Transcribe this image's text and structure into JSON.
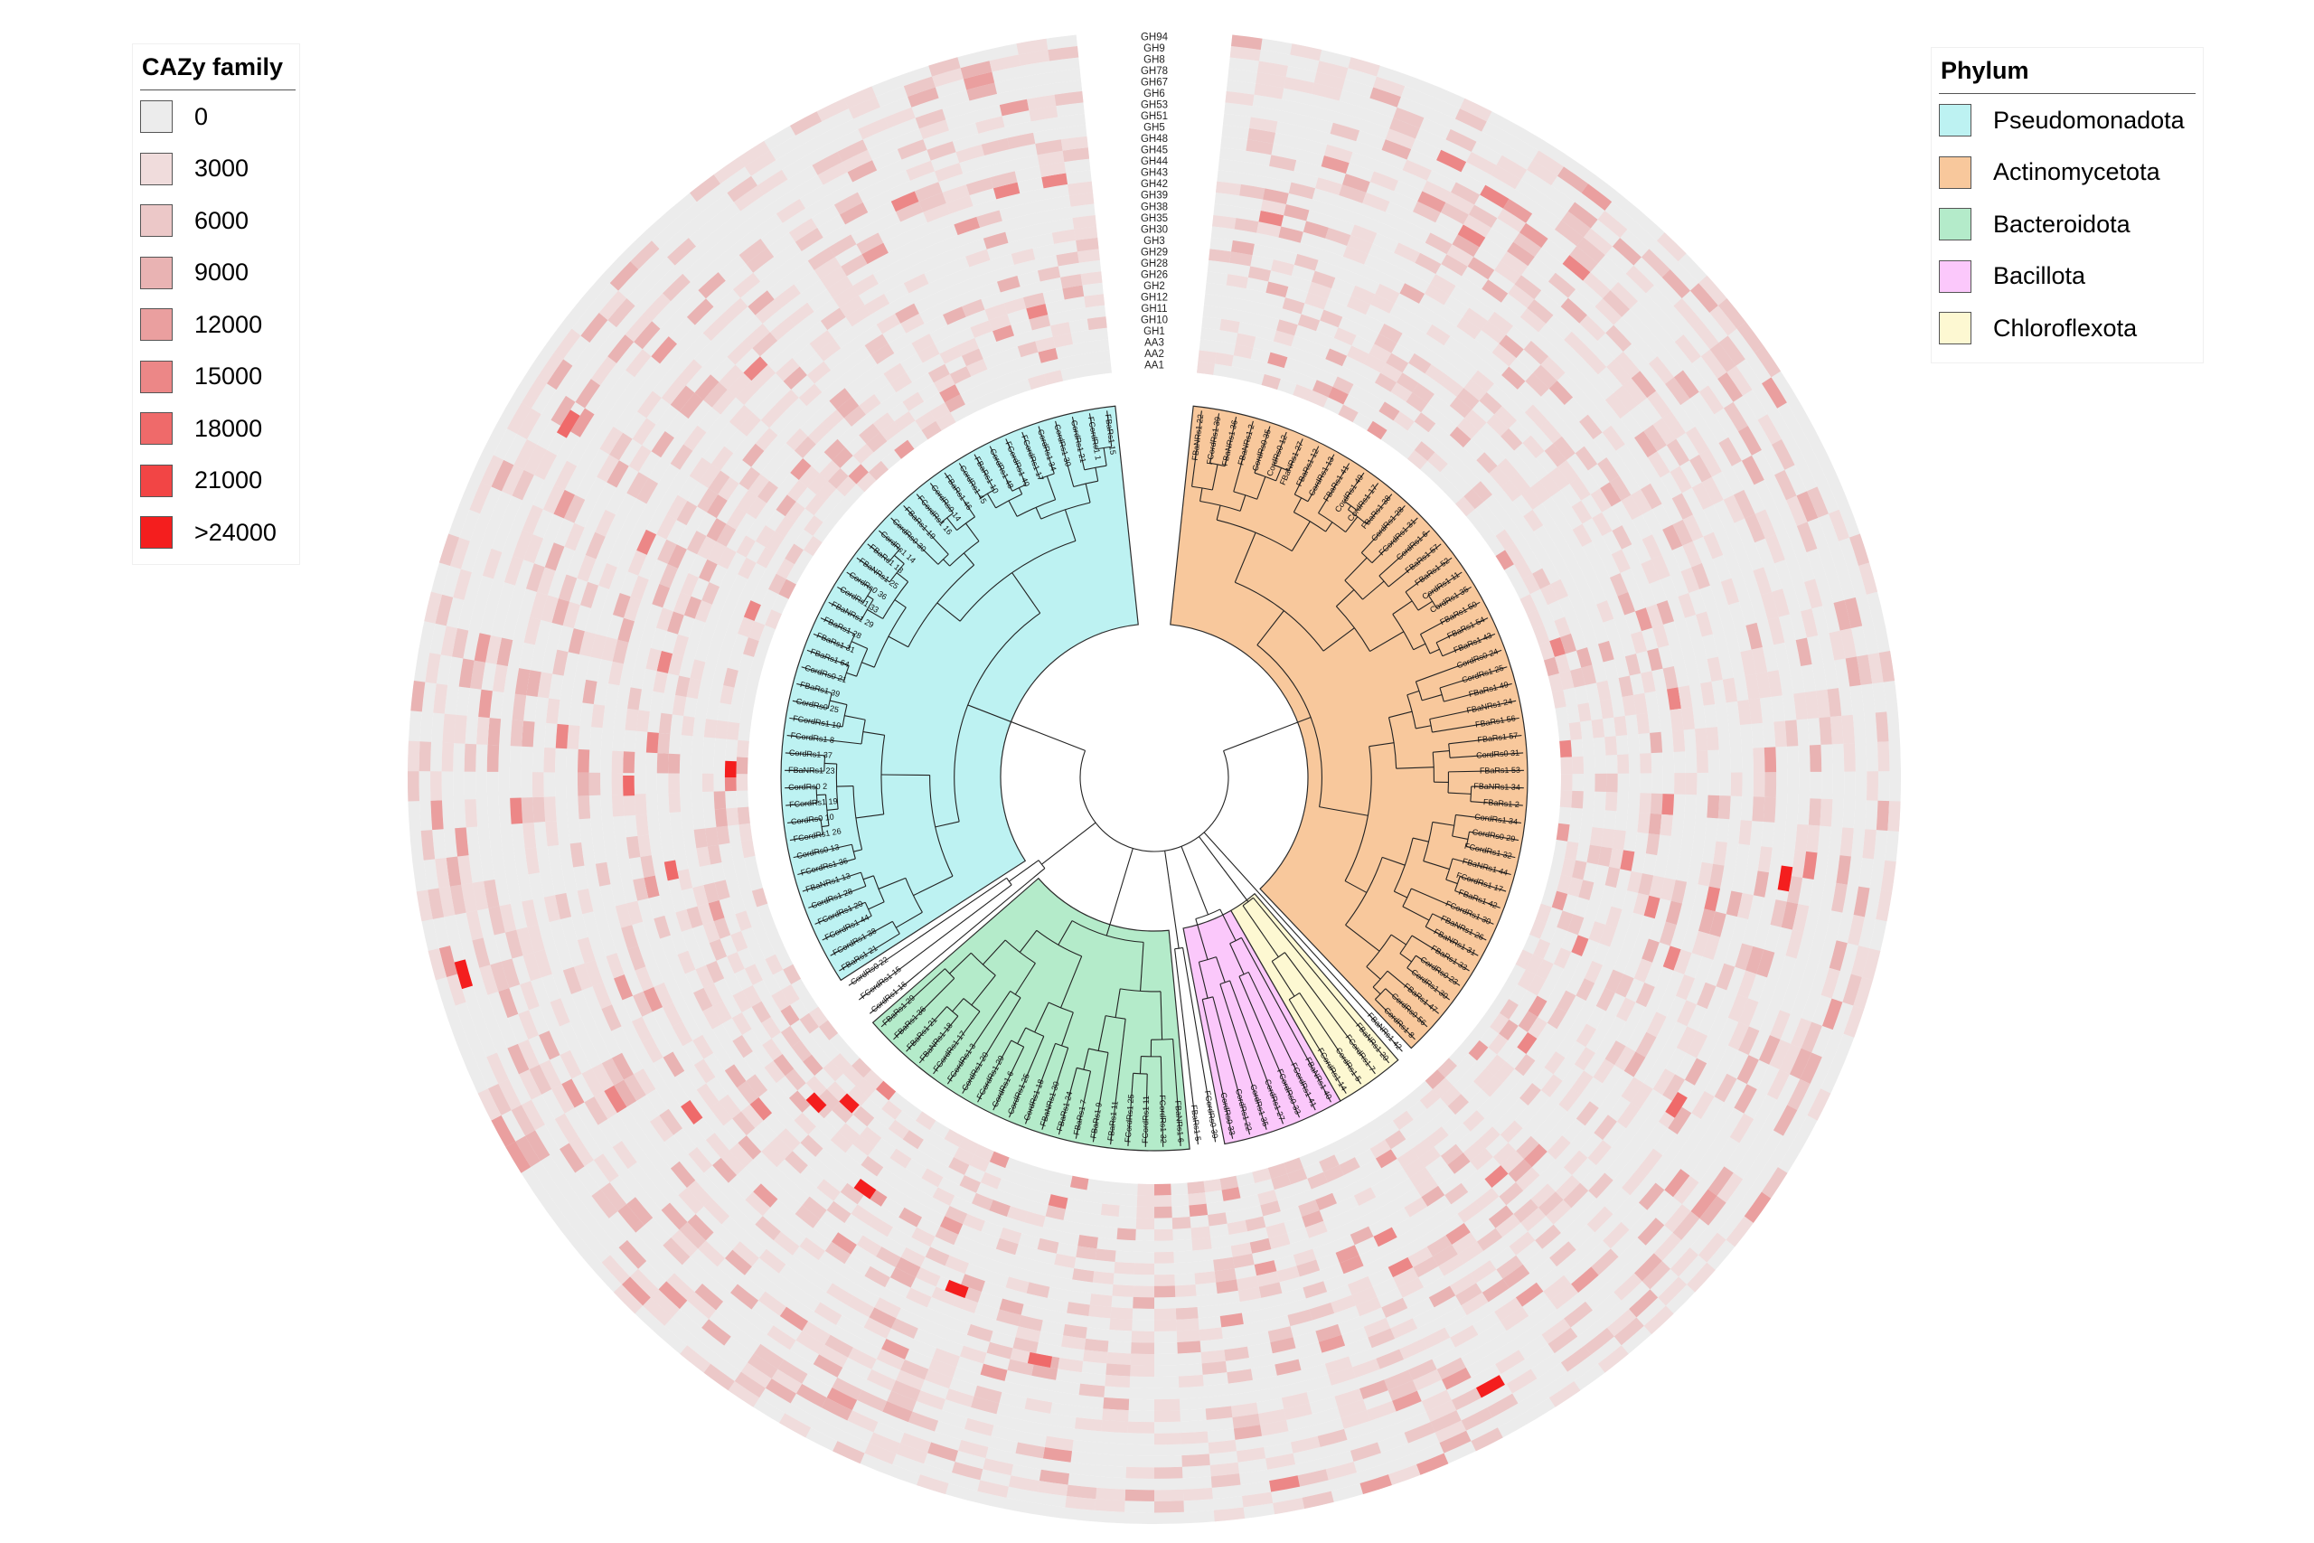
{
  "cazy_legend": {
    "title": "CAZy family",
    "items": [
      {
        "label": "0",
        "color": "#ececec"
      },
      {
        "label": "3000",
        "color": "#f0dcdc"
      },
      {
        "label": "6000",
        "color": "#ecc8c8"
      },
      {
        "label": "9000",
        "color": "#e9b3b3"
      },
      {
        "label": "12000",
        "color": "#ea9f9f"
      },
      {
        "label": "15000",
        "color": "#ec8787"
      },
      {
        "label": "18000",
        "color": "#ef6a6a"
      },
      {
        "label": "21000",
        "color": "#f24545"
      },
      {
        "label": ">24000",
        "color": "#f41e1e"
      }
    ]
  },
  "phylum_legend": {
    "title": "Phylum",
    "items": [
      {
        "label": "Pseudomonadota",
        "color": "#bdf2f2"
      },
      {
        "label": "Actinomycetota",
        "color": "#f8c89c"
      },
      {
        "label": "Bacteroidota",
        "color": "#b4ebca"
      },
      {
        "label": "Bacillota",
        "color": "#fbc8fb"
      },
      {
        "label": "Chloroflexota",
        "color": "#fdf8d2"
      }
    ]
  },
  "ring_families": [
    "GH94",
    "GH9",
    "GH8",
    "GH78",
    "GH67",
    "GH6",
    "GH53",
    "GH51",
    "GH5",
    "GH48",
    "GH45",
    "GH44",
    "GH43",
    "GH42",
    "GH39",
    "GH38",
    "GH35",
    "GH30",
    "GH3",
    "GH29",
    "GH28",
    "GH26",
    "GH2",
    "GH12",
    "GH11",
    "GH10",
    "GH1",
    "AA3",
    "AA2",
    "AA1"
  ],
  "clades": [
    {
      "phylum": "Pseudomonadota",
      "tips": [
        "FBaRs1 15",
        "FCordRs1 1",
        "CordRs1 21",
        "CordRs1 30",
        "CordRs1 34",
        "FCordRs1 17",
        "FCordRs1 40",
        "CordRs1 48",
        "FBaRs1 10",
        "CordRs1 45",
        "FBaRs1 46",
        "CordRs0 14",
        "FCordRs1 16",
        "FBaRs1 19",
        "CordRs0 30",
        "CordRs1 14",
        "FBaRs1 18",
        "FBaNRs1 25",
        "CordRs0 36",
        "CordRs1 33",
        "FBaNRs1 29",
        "FBaRs1 28",
        "FBaRs1 31",
        "FBaRs1 64",
        "CordRs0 21",
        "FBaRs1 39",
        "CordRs0 25",
        "FCordRs1 10",
        "FCordRs1 8",
        "CordRs1 37",
        "FBaNRs1 23",
        "CordRs0 2",
        "FCordRs1 19",
        "CordRs0 10",
        "FCordRs1 26",
        "CordRs0 13",
        "FCordRs1 36",
        "FBaNRs1 13",
        "CordRs1 28",
        "FCordRs1 20",
        "FCordRs1 44",
        "FCordRs1 38",
        "FBaRs1 21"
      ]
    },
    {
      "phylum": "",
      "tips": [
        "CordRs0 22",
        "FCordRs1 15",
        "CordRs1 16"
      ]
    },
    {
      "phylum": "Bacteroidota",
      "tips": [
        "FBaRs1 29",
        "FBaRs1 36",
        "FBaRs1 21",
        "FBaNRs1 18",
        "FCordRs1 17",
        "FCordRs1 3",
        "CordRs1 20",
        "FCordRs1 29",
        "CordRs1 6",
        "CordRs1 25",
        "CordRs1 18",
        "FBaNRs1 30",
        "FBaRs1 24",
        "FBaRs1 7",
        "FBaRs1 9",
        "FBaRs1 11",
        "FCordRs1 25",
        "FCordRs1 11",
        "FCordRs1 32",
        "FBaNRs1 6"
      ]
    },
    {
      "phylum": "",
      "tips": [
        "FBaRs1 5",
        "FCordRs0 39"
      ]
    },
    {
      "phylum": "Bacillota",
      "tips": [
        "CordRs0 33",
        "CordRs1 22",
        "CordRs1 35",
        "CordRs1 27",
        "FCordRs0 33",
        "FCordRs1 41",
        "FBaNRs1 40"
      ]
    },
    {
      "phylum": "Chloroflexota",
      "tips": [
        "FCordRs1 14",
        "CordRs1 5",
        "FCordRs1 7",
        "FBaNRs1 20"
      ]
    },
    {
      "phylum": "",
      "tips": [
        "FBaNRs1 42"
      ]
    },
    {
      "phylum": "Actinomycetota",
      "tips": [
        "CordRs1 8",
        "CordRs0 56",
        "FBaRs1 47",
        "CordRs1 30",
        "CordRs0 23",
        "FBaRs1 33",
        "FBaNRs1 31",
        "FBaNRs1 26",
        "FCordRs1 30",
        "FBaRs1 42",
        "FCordRs1 17",
        "FBaNRs1 44",
        "FCordRs1 32",
        "CordRs0 29",
        "CordRs1 34",
        "FBaRs1 2",
        "FBaNRs1 34",
        "FBaRs1 53",
        "CordRs0 31",
        "FBaRs1 57",
        "FBaRs1 56",
        "FBaNRs1 24",
        "FBaRs1 49",
        "CordRs1 25",
        "CordRs0 24",
        "FBaRs1 43",
        "FBaRs1 54",
        "FBaRs1 50",
        "CordRs1 35",
        "CordRs1 11",
        "FBaRs1 52",
        "FBaRs1 57",
        "CordRs1 6",
        "FCordRs1 31",
        "CordRs1 28",
        "FBaRs1 38",
        "CordRs1 17",
        "CordRs1 49",
        "FBaRs1 41",
        "CordRs1 13",
        "FBaRs1 12",
        "FBaNRs1 27",
        "CordRs0 12",
        "CordRs0 35",
        "FBaNRs1 2",
        "FBaNRs1 36",
        "FCordRs1 39",
        "FBaNRs1 22"
      ]
    }
  ]
}
